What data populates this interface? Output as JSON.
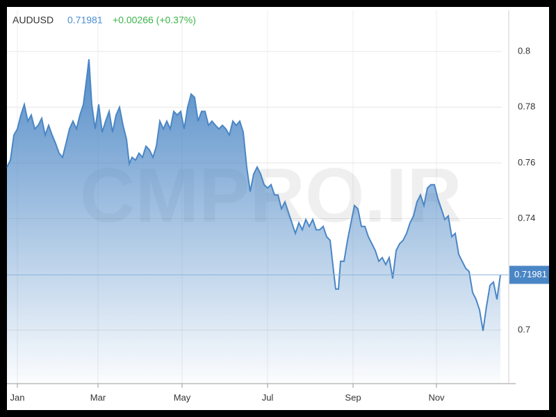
{
  "chart_data": {
    "type": "area",
    "series": [
      {
        "name": "AUDUSD",
        "color": "#4a86c5",
        "values": [
          0.7585,
          0.761,
          0.77,
          0.7722,
          0.7772,
          0.781,
          0.775,
          0.7772,
          0.7722,
          0.7735,
          0.776,
          0.77,
          0.7735,
          0.77,
          0.767,
          0.7635,
          0.762,
          0.767,
          0.7722,
          0.775,
          0.7722,
          0.7772,
          0.781,
          0.791,
          0.7972,
          0.781,
          0.7722,
          0.781,
          0.771,
          0.775,
          0.7785,
          0.771,
          0.7772,
          0.78,
          0.7735,
          0.7685,
          0.7597,
          0.762,
          0.761,
          0.7635,
          0.762,
          0.766,
          0.7647,
          0.762,
          0.766,
          0.775,
          0.7722,
          0.775,
          0.7722,
          0.7785,
          0.7772,
          0.7785,
          0.7722,
          0.78,
          0.7847,
          0.7835,
          0.775,
          0.7785,
          0.7785,
          0.7735,
          0.775,
          0.7735,
          0.7722,
          0.7735,
          0.7722,
          0.77,
          0.775,
          0.7735,
          0.775,
          0.771,
          0.7585,
          0.7497,
          0.756,
          0.7585,
          0.756,
          0.7522,
          0.751,
          0.7522,
          0.7485,
          0.7485,
          0.7435,
          0.746,
          0.7422,
          0.7385,
          0.7347,
          0.7385,
          0.736,
          0.7397,
          0.7372,
          0.7397,
          0.736,
          0.736,
          0.7372,
          0.7335,
          0.7322,
          0.721,
          0.7147,
          0.7147,
          0.7247,
          0.7247,
          0.7322,
          0.7385,
          0.7447,
          0.7435,
          0.7372,
          0.7372,
          0.7335,
          0.731,
          0.7285,
          0.7247,
          0.726,
          0.7235,
          0.726,
          0.7185,
          0.7285,
          0.731,
          0.7322,
          0.7347,
          0.7385,
          0.741,
          0.746,
          0.7485,
          0.7447,
          0.751,
          0.7522,
          0.7522,
          0.7472,
          0.7435,
          0.7397,
          0.741,
          0.7335,
          0.7347,
          0.7272,
          0.7247,
          0.7222,
          0.721,
          0.7135,
          0.711,
          0.7072,
          0.6997,
          0.7085,
          0.716,
          0.7172,
          0.711,
          0.71981
        ]
      }
    ],
    "x": [
      -7.5,
      -5,
      -2.5,
      0,
      2.5,
      5,
      7.5,
      10,
      12.5,
      15,
      17.5,
      20,
      22.5,
      25,
      27.5,
      30,
      32.5,
      35,
      37.5,
      40,
      42.5,
      45,
      47.5,
      50,
      51.5,
      53.5,
      56,
      58.5,
      61,
      63.5,
      66,
      68.5,
      71,
      73.5,
      76,
      78.5,
      80.5,
      82.5,
      85,
      87.5,
      90,
      92.5,
      95,
      97.5,
      100,
      102.5,
      105,
      107.5,
      110,
      112.5,
      115,
      117.5,
      120,
      122.5,
      125,
      127.5,
      130,
      132.5,
      135,
      137.5,
      140,
      142.5,
      145,
      147.5,
      150,
      152.5,
      155,
      157.5,
      160,
      162.5,
      165,
      167.5,
      170,
      172.5,
      175,
      177.5,
      180,
      182.5,
      185,
      187.5,
      190,
      192.5,
      195,
      197.5,
      200,
      202.5,
      205,
      207.5,
      210,
      212.5,
      215,
      217.5,
      220,
      222.5,
      225,
      227.5,
      229,
      231,
      232.5,
      235,
      237.5,
      240,
      242.5,
      245,
      247.5,
      250,
      252.5,
      255,
      257.5,
      260,
      262.5,
      265,
      267.5,
      270,
      272.5,
      275,
      277.5,
      280,
      282.5,
      285,
      287.5,
      290,
      292.5,
      295,
      297.5,
      300,
      302.5,
      305,
      307.5,
      310,
      312.5,
      315,
      317.5,
      320,
      322.5,
      325,
      327.5,
      330,
      332.5,
      335,
      337.5,
      340,
      342.5,
      345,
      347.5
    ],
    "last": 0.71981,
    "change": "+0.00266 (+0.37%)",
    "watermark": "CMPRO.IR",
    "xlim": [
      -7.5,
      348.5
    ],
    "xticks": [
      {
        "value": 0,
        "label": "Jan"
      },
      {
        "value": 58,
        "label": "Mar"
      },
      {
        "value": 118.5,
        "label": "May"
      },
      {
        "value": 180,
        "label": "Jul"
      },
      {
        "value": 241.5,
        "label": "Sep"
      },
      {
        "value": 301.5,
        "label": "Nov"
      }
    ],
    "ylim": [
      0.68075,
      0.81475
    ],
    "yticks": [
      0.7,
      0.74,
      0.76,
      0.78,
      0.8
    ],
    "grid": true
  }
}
